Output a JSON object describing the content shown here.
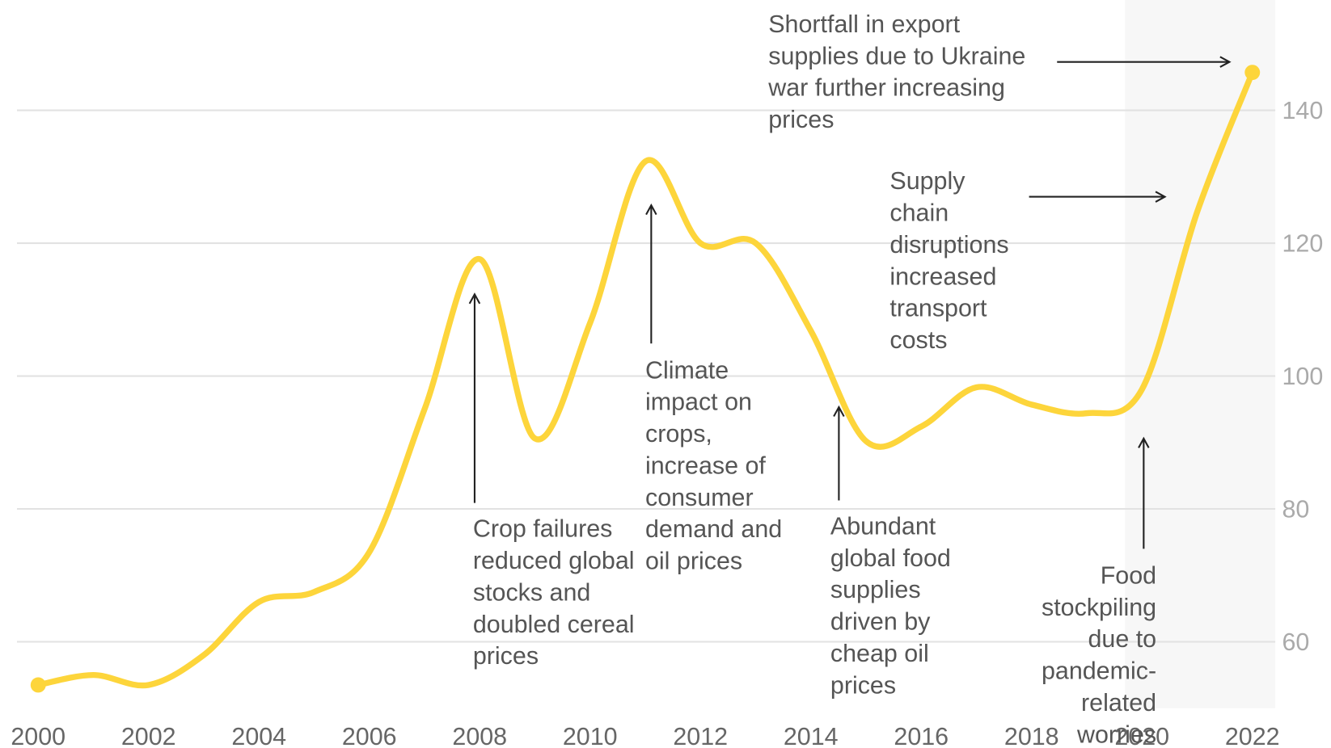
{
  "chart_data": {
    "type": "line",
    "x": [
      2000,
      2001,
      2002,
      2003,
      2004,
      2005,
      2006,
      2007,
      2008,
      2009,
      2010,
      2011,
      2012,
      2013,
      2014,
      2015,
      2016,
      2017,
      2018,
      2019,
      2020,
      2021,
      2022
    ],
    "series": [
      {
        "color": "#fdd53b",
        "values": [
          53.5,
          55,
          53.5,
          58,
          66,
          67.5,
          73.5,
          95,
          117.6,
          90.6,
          108,
          132.3,
          120,
          120,
          106.8,
          90.2,
          92.4,
          98.3,
          95.7,
          94.4,
          98,
          124.7,
          145.7
        ]
      }
    ],
    "xlim": [
      2000,
      2022
    ],
    "xticks": [
      2000,
      2002,
      2004,
      2006,
      2008,
      2010,
      2012,
      2014,
      2016,
      2018,
      2020,
      2022
    ],
    "ylim": [
      50,
      156.6
    ],
    "yticks": [
      60,
      80,
      100,
      120,
      140
    ],
    "grid": true,
    "shaded_from": 2020,
    "annotations": [
      {
        "x": 2022,
        "lines": [
          "Shortfall in export",
          "supplies due to Ukraine",
          "war further increasing",
          "prices"
        ]
      },
      {
        "x": 2021,
        "lines": [
          "Supply",
          "chain",
          "disruptions",
          "increased",
          "transport",
          "costs"
        ]
      },
      {
        "x": 2011,
        "lines": [
          "Climate",
          "impact on",
          "crops,",
          "increase of",
          "consumer",
          "demand and",
          "oil prices"
        ]
      },
      {
        "x": 2008,
        "lines": [
          "Crop failures",
          "reduced global",
          "stocks and",
          "doubled cereal",
          "prices"
        ]
      },
      {
        "x": 2014.5,
        "lines": [
          "Abundant",
          "global food",
          "supplies",
          "driven by",
          "cheap oil",
          "prices"
        ]
      },
      {
        "x": 2020,
        "lines": [
          "Food",
          "stockpiling",
          "due to",
          "pandemic-",
          "related",
          "worries"
        ]
      }
    ]
  }
}
